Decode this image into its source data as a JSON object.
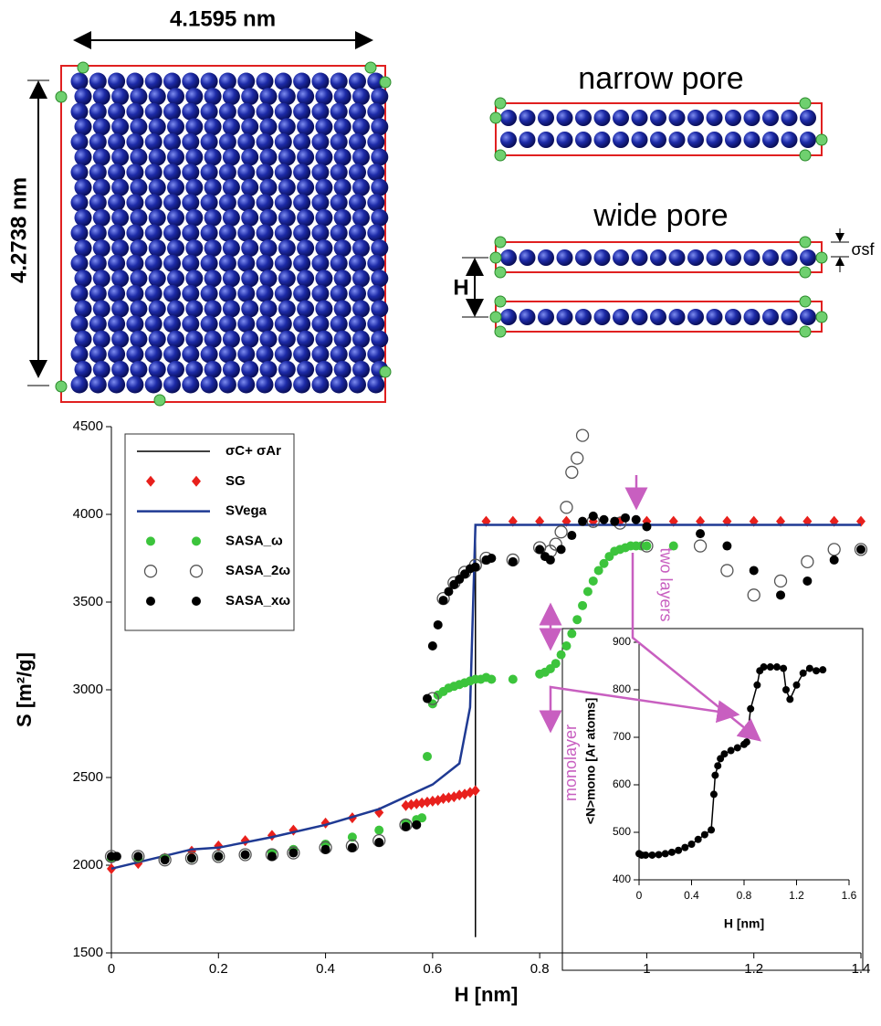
{
  "diagram": {
    "sheet_width": "4.1595 nm",
    "sheet_height": "4.2738 nm",
    "narrow_pore": "narrow pore",
    "wide_pore": "wide pore",
    "pore_width": "H",
    "sigma_sf": "σsf"
  },
  "chart_data": [
    {
      "type": "scatter",
      "xlabel": "H [nm]",
      "ylabel": "S [m²/g]",
      "xlim": [
        0,
        1.4
      ],
      "ylim": [
        1500,
        4500
      ],
      "xticks": [
        0,
        0.2,
        0.4,
        0.6,
        0.8,
        1,
        1.2,
        1.4
      ],
      "yticks": [
        1500,
        2000,
        2500,
        3000,
        3500,
        4000,
        4500
      ],
      "legend": "upper left",
      "annotations": [
        "monolayer",
        "two layers"
      ],
      "series": [
        {
          "name": "σC+ σAr",
          "mode": "line",
          "color": "#000000",
          "x": [
            0.68,
            0.68
          ],
          "values": [
            1590,
            3940
          ]
        },
        {
          "name": "SG",
          "mode": "markers",
          "marker": "diamond",
          "color": "#e8201c",
          "x": [
            0,
            0.05,
            0.1,
            0.15,
            0.2,
            0.25,
            0.3,
            0.34,
            0.4,
            0.45,
            0.5,
            0.55,
            0.56,
            0.57,
            0.58,
            0.59,
            0.6,
            0.61,
            0.62,
            0.63,
            0.64,
            0.65,
            0.66,
            0.67,
            0.68,
            0.7,
            0.75,
            0.8,
            0.85,
            0.9,
            0.95,
            1,
            1.05,
            1.1,
            1.15,
            1.2,
            1.25,
            1.3,
            1.35,
            1.4
          ],
          "values": [
            1980,
            2010,
            2040,
            2080,
            2110,
            2140,
            2170,
            2200,
            2240,
            2270,
            2300,
            2340,
            2345,
            2350,
            2355,
            2360,
            2365,
            2370,
            2380,
            2385,
            2390,
            2400,
            2405,
            2415,
            2425,
            3960,
            3960,
            3960,
            3960,
            3960,
            3960,
            3960,
            3960,
            3960,
            3960,
            3960,
            3960,
            3960,
            3960,
            3960
          ]
        },
        {
          "name": "SVega",
          "mode": "line",
          "color": "#1f3a93",
          "x": [
            0,
            0.15,
            0.2,
            0.3,
            0.4,
            0.5,
            0.6,
            0.65,
            0.67,
            0.68,
            0.7,
            1.4
          ],
          "values": [
            1980,
            2090,
            2100,
            2160,
            2230,
            2320,
            2460,
            2580,
            2900,
            3940,
            3940,
            3940
          ]
        },
        {
          "name": "SASA_ω",
          "mode": "markers",
          "marker": "circle",
          "color": "#3cc43c",
          "x": [
            0,
            0.05,
            0.1,
            0.15,
            0.2,
            0.25,
            0.3,
            0.34,
            0.4,
            0.45,
            0.5,
            0.55,
            0.57,
            0.58,
            0.59,
            0.6,
            0.61,
            0.62,
            0.63,
            0.64,
            0.65,
            0.66,
            0.67,
            0.68,
            0.69,
            0.7,
            0.71,
            0.75,
            0.8,
            0.81,
            0.82,
            0.83,
            0.84,
            0.85,
            0.86,
            0.87,
            0.88,
            0.89,
            0.9,
            0.91,
            0.92,
            0.93,
            0.94,
            0.95,
            0.96,
            0.97,
            0.98,
            0.99,
            1,
            1.05
          ],
          "values": [
            2040,
            2040,
            2040,
            2040,
            2050,
            2060,
            2070,
            2090,
            2120,
            2160,
            2200,
            2240,
            2260,
            2270,
            2620,
            2920,
            2970,
            2990,
            3010,
            3020,
            3030,
            3040,
            3050,
            3060,
            3060,
            3070,
            3060,
            3060,
            3090,
            3100,
            3120,
            3150,
            3200,
            3250,
            3320,
            3400,
            3480,
            3560,
            3620,
            3680,
            3720,
            3760,
            3790,
            3800,
            3810,
            3820,
            3820,
            3820,
            3820,
            3820
          ]
        },
        {
          "name": "SASA_2ω",
          "mode": "markers",
          "marker": "open-circle",
          "color": "#555555",
          "x": [
            0,
            0.05,
            0.1,
            0.15,
            0.2,
            0.25,
            0.3,
            0.34,
            0.4,
            0.45,
            0.5,
            0.55,
            0.6,
            0.62,
            0.64,
            0.66,
            0.68,
            0.7,
            0.75,
            0.8,
            0.82,
            0.83,
            0.84,
            0.85,
            0.86,
            0.87,
            0.88,
            0.9,
            0.95,
            1,
            1.1,
            1.15,
            1.2,
            1.25,
            1.3,
            1.35,
            1.4
          ],
          "values": [
            2050,
            2050,
            2030,
            2040,
            2050,
            2060,
            2060,
            2070,
            2100,
            2110,
            2140,
            2230,
            2950,
            3520,
            3610,
            3670,
            3710,
            3750,
            3740,
            3810,
            3790,
            3830,
            3900,
            4040,
            4240,
            4320,
            4450,
            3960,
            3950,
            3820,
            3820,
            3680,
            3540,
            3620,
            3730,
            3800,
            3800
          ]
        },
        {
          "name": "SASA_xω",
          "mode": "markers",
          "marker": "circle",
          "color": "#000000",
          "x": [
            0,
            0.01,
            0.05,
            0.1,
            0.15,
            0.2,
            0.25,
            0.3,
            0.34,
            0.4,
            0.45,
            0.5,
            0.55,
            0.57,
            0.59,
            0.6,
            0.61,
            0.62,
            0.63,
            0.64,
            0.65,
            0.66,
            0.67,
            0.68,
            0.7,
            0.71,
            0.75,
            0.8,
            0.81,
            0.82,
            0.84,
            0.86,
            0.88,
            0.9,
            0.92,
            0.94,
            0.96,
            0.98,
            1,
            1.1,
            1.15,
            1.2,
            1.25,
            1.3,
            1.35,
            1.4
          ],
          "values": [
            2050,
            2050,
            2050,
            2030,
            2040,
            2050,
            2060,
            2050,
            2070,
            2090,
            2100,
            2130,
            2220,
            2230,
            2950,
            3250,
            3370,
            3510,
            3560,
            3600,
            3630,
            3660,
            3690,
            3700,
            3740,
            3750,
            3730,
            3800,
            3760,
            3740,
            3800,
            3880,
            3960,
            3990,
            3970,
            3960,
            3980,
            3970,
            3930,
            3890,
            3820,
            3680,
            3540,
            3620,
            3740,
            3800
          ]
        }
      ]
    },
    {
      "type": "line",
      "xlabel": "H [nm]",
      "ylabel": "<N>mono [Ar atoms]",
      "xlim": [
        0,
        1.6
      ],
      "ylim": [
        400,
        900
      ],
      "xticks": [
        0,
        0.4,
        0.8,
        1.2,
        1.6
      ],
      "yticks": [
        400,
        500,
        600,
        700,
        800,
        900
      ],
      "series": [
        {
          "mode": "line+markers",
          "marker": "circle",
          "color": "#000000",
          "x": [
            0,
            0.02,
            0.05,
            0.1,
            0.15,
            0.2,
            0.25,
            0.3,
            0.35,
            0.4,
            0.45,
            0.5,
            0.55,
            0.57,
            0.58,
            0.6,
            0.62,
            0.65,
            0.7,
            0.75,
            0.8,
            0.82,
            0.85,
            0.9,
            0.92,
            0.95,
            1,
            1.05,
            1.1,
            1.12,
            1.15,
            1.2,
            1.25,
            1.3,
            1.35,
            1.4
          ],
          "values": [
            455,
            452,
            452,
            452,
            453,
            455,
            458,
            462,
            468,
            475,
            485,
            495,
            505,
            580,
            620,
            640,
            655,
            665,
            672,
            678,
            685,
            690,
            760,
            810,
            840,
            848,
            848,
            848,
            845,
            800,
            780,
            810,
            835,
            845,
            840,
            842
          ]
        }
      ]
    }
  ]
}
